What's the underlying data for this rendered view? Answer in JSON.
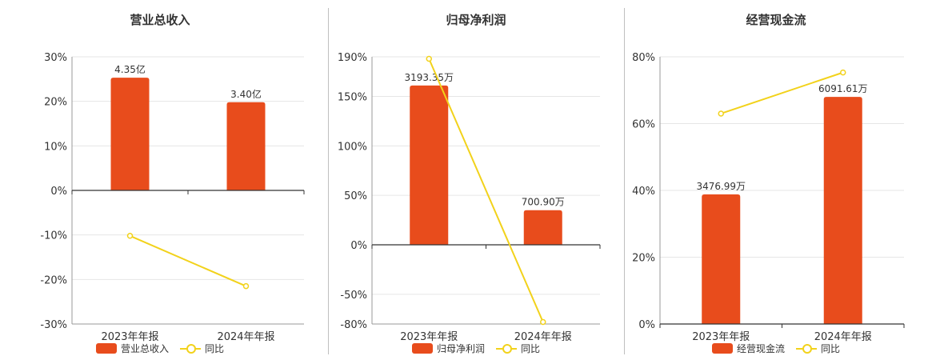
{
  "colors": {
    "bar": "#e84c1c",
    "line": "#f2d21b",
    "grid": "#e6e6e6",
    "axis": "#333333"
  },
  "chart_data": [
    {
      "type": "bar",
      "title": "营业总收入",
      "categories": [
        "2023年年报",
        "2024年年报"
      ],
      "ylim": [
        -30,
        30
      ],
      "yticks": [
        30,
        20,
        10,
        0,
        -10,
        -20,
        -30
      ],
      "tick_labels": [
        "30%",
        "20%",
        "10%",
        "0%",
        "-10%",
        "-20%",
        "-30%"
      ],
      "series": [
        {
          "name": "营业总收入",
          "kind": "bar",
          "values": [
            25.3,
            19.8
          ],
          "labels": [
            "4.35亿",
            "3.40亿"
          ]
        },
        {
          "name": "同比",
          "kind": "line",
          "values": [
            -10.2,
            -21.5
          ]
        }
      ],
      "legend": "bottom"
    },
    {
      "type": "bar",
      "title": "归母净利润",
      "categories": [
        "2023年年报",
        "2024年年报"
      ],
      "ylim": [
        -80,
        190
      ],
      "yticks": [
        190,
        150,
        100,
        50,
        0,
        -50,
        -80
      ],
      "tick_labels": [
        "190%",
        "150%",
        "100%",
        "50%",
        "0%",
        "-50%",
        "-80%"
      ],
      "series": [
        {
          "name": "归母净利润",
          "kind": "bar",
          "values": [
            161,
            35
          ],
          "labels": [
            "3193.35万",
            "700.90万"
          ]
        },
        {
          "name": "同比",
          "kind": "line",
          "values": [
            188,
            -78
          ]
        }
      ],
      "legend": "bottom"
    },
    {
      "type": "bar",
      "title": "经营现金流",
      "categories": [
        "2023年年报",
        "2024年年报"
      ],
      "ylim": [
        0,
        80
      ],
      "yticks": [
        80,
        60,
        40,
        20,
        0
      ],
      "tick_labels": [
        "80%",
        "60%",
        "40%",
        "20%",
        "0%"
      ],
      "series": [
        {
          "name": "经营现金流",
          "kind": "bar",
          "values": [
            38.8,
            68
          ],
          "labels": [
            "3476.99万",
            "6091.61万"
          ]
        },
        {
          "name": "同比",
          "kind": "line",
          "values": [
            63,
            75.3
          ]
        }
      ],
      "legend": "bottom"
    }
  ]
}
